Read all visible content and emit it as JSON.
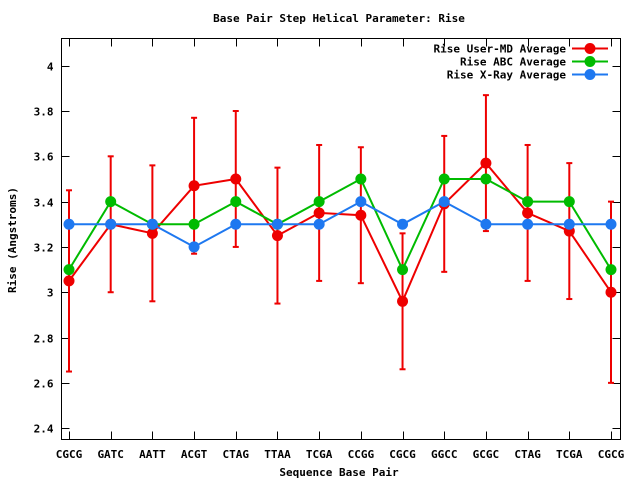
{
  "chart_data": {
    "type": "line",
    "title": "Base Pair Step Helical Parameter: Rise",
    "xlabel": "Sequence Base Pair",
    "ylabel": "Rise (Angstroms)",
    "ylim": [
      2.35,
      4.12
    ],
    "yticks": [
      2.4,
      2.6,
      2.8,
      3,
      3.2,
      3.4,
      3.6,
      3.8,
      4
    ],
    "ytick_labels": [
      "2.4",
      "2.6",
      "2.8",
      "3",
      "3.2",
      "3.4",
      "3.6",
      "3.8",
      "4"
    ],
    "categories": [
      "CGCG",
      "GATC",
      "AATT",
      "ACGT",
      "CTAG",
      "TTAA",
      "TCGA",
      "CCGG",
      "CGCG",
      "GGCC",
      "GCGC",
      "CTAG",
      "TCGA",
      "CGCG"
    ],
    "grid": false,
    "legend_position": "top-right",
    "series": [
      {
        "name": "Rise User-MD Average",
        "color": "#ee0000",
        "values": [
          3.05,
          3.3,
          3.26,
          3.47,
          3.5,
          3.25,
          3.35,
          3.34,
          2.96,
          3.39,
          3.57,
          3.35,
          3.27,
          3.0
        ],
        "errors": [
          0.4,
          0.3,
          0.3,
          0.3,
          0.3,
          0.3,
          0.3,
          0.3,
          0.3,
          0.3,
          0.3,
          0.3,
          0.3,
          0.4
        ]
      },
      {
        "name": "Rise ABC Average",
        "color": "#00bb00",
        "values": [
          3.1,
          3.4,
          3.3,
          3.3,
          3.4,
          3.3,
          3.4,
          3.5,
          3.1,
          3.5,
          3.5,
          3.4,
          3.4,
          3.1
        ]
      },
      {
        "name": "Rise X-Ray Average",
        "color": "#1e78f0",
        "values": [
          3.3,
          3.3,
          3.3,
          3.2,
          3.3,
          3.3,
          3.3,
          3.4,
          3.3,
          3.4,
          3.3,
          3.3,
          3.3,
          3.3
        ]
      }
    ]
  }
}
